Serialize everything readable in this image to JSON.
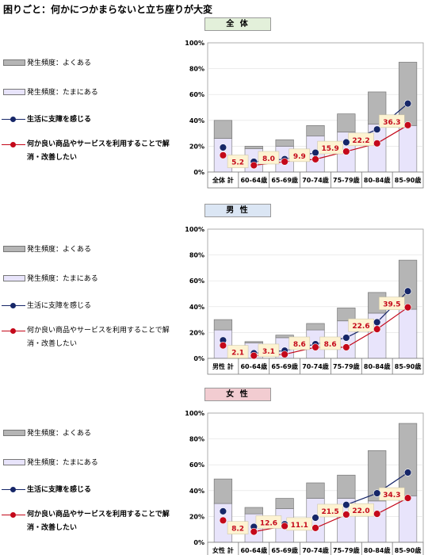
{
  "page_title": "困りごと：何かにつかまらないと立ち座りが大変",
  "colors": {
    "often": "#b5b5b5",
    "sometimes": "#e8e4fb",
    "line_difficulty": "#162668",
    "line_improve": "#c4081a",
    "header_total_bg": "#e3f0da",
    "header_male_bg": "#dbe6f4",
    "header_female_bg": "#f2ccd1",
    "label_box_bg": "#fdf3d2"
  },
  "legend_items": [
    "発生頻度：よくある",
    "発生頻度：たまにある",
    "生活に支障を感じる",
    "何か良い商品やサービスを利用することで解消・改善したい"
  ],
  "chart_data": [
    {
      "type": "bar",
      "title": "全 体",
      "categories": [
        "全体 計",
        "60-64歳",
        "65-69歳",
        "70-74歳",
        "75-79歳",
        "80-84歳",
        "85-90歳"
      ],
      "ylim": [
        0,
        100
      ],
      "yticks": [
        "0%",
        "20%",
        "40%",
        "60%",
        "80%",
        "100%"
      ],
      "series": [
        {
          "name": "発生頻度：たまにある",
          "kind": "bar",
          "values": [
            26,
            18,
            20,
            28,
            31,
            37,
            36
          ]
        },
        {
          "name": "発生頻度：よくある",
          "kind": "bar",
          "values": [
            14,
            2,
            5,
            8,
            14,
            25,
            49
          ]
        },
        {
          "name": "生活に支障を感じる",
          "kind": "line",
          "values": [
            19,
            8,
            10,
            15,
            23,
            33,
            53
          ]
        },
        {
          "name": "何か良い商品やサービスを利用することで解消・改善したい",
          "kind": "line",
          "values": [
            13,
            5.2,
            8.0,
            9.9,
            15.9,
            22.2,
            36.3
          ]
        }
      ],
      "data_labels": [
        "5.2",
        "8.0",
        "9.9",
        "15.9",
        "22.2",
        "36.3"
      ],
      "legend_bold": [
        false,
        false,
        true,
        true
      ]
    },
    {
      "type": "bar",
      "title": "男 性",
      "categories": [
        "男性 計",
        "60-64歳",
        "65-69歳",
        "70-74歳",
        "75-79歳",
        "80-84歳",
        "85-90歳"
      ],
      "ylim": [
        0,
        100
      ],
      "yticks": [
        "0%",
        "20%",
        "40%",
        "60%",
        "80%",
        "100%"
      ],
      "series": [
        {
          "name": "発生頻度：たまにある",
          "kind": "bar",
          "values": [
            22,
            12,
            16,
            22,
            29,
            35,
            38
          ]
        },
        {
          "name": "発生頻度：よくある",
          "kind": "bar",
          "values": [
            8,
            1,
            2,
            5,
            10,
            16,
            38
          ]
        },
        {
          "name": "生活に支障を感じる",
          "kind": "line",
          "values": [
            14,
            4,
            6,
            11,
            16,
            28,
            52
          ]
        },
        {
          "name": "何か良い商品やサービスを利用することで解消・改善したい",
          "kind": "line",
          "values": [
            10,
            2.1,
            3.1,
            8.6,
            8.6,
            22.6,
            39.5
          ]
        }
      ],
      "data_labels": [
        "2.1",
        "3.1",
        "8.6",
        "8.6",
        "22.6",
        "39.5"
      ],
      "legend_bold": [
        false,
        false,
        false,
        false
      ]
    },
    {
      "type": "bar",
      "title": "女 性",
      "categories": [
        "女性 計",
        "60-64歳",
        "65-69歳",
        "70-74歳",
        "75-79歳",
        "80-84歳",
        "85-90歳"
      ],
      "ylim": [
        0,
        100
      ],
      "yticks": [
        "0%",
        "20%",
        "40%",
        "60%",
        "80%",
        "100%"
      ],
      "series": [
        {
          "name": "発生頻度：たまにある",
          "kind": "bar",
          "values": [
            30,
            22,
            26,
            34,
            34,
            32,
            36
          ]
        },
        {
          "name": "発生頻度：よくある",
          "kind": "bar",
          "values": [
            19,
            5,
            8,
            12,
            18,
            39,
            56
          ]
        },
        {
          "name": "生活に支障を感じる",
          "kind": "line",
          "values": [
            24,
            12,
            14,
            19,
            29,
            38,
            54
          ]
        },
        {
          "name": "何か良い商品やサービスを利用することで解消・改善したい",
          "kind": "line",
          "values": [
            17,
            8.2,
            12.6,
            11.1,
            21.5,
            22.0,
            34.3
          ]
        }
      ],
      "data_labels": [
        "8.2",
        "12.6",
        "11.1",
        "21.5",
        "22.0",
        "34.3"
      ],
      "legend_bold": [
        false,
        false,
        true,
        true
      ]
    }
  ]
}
